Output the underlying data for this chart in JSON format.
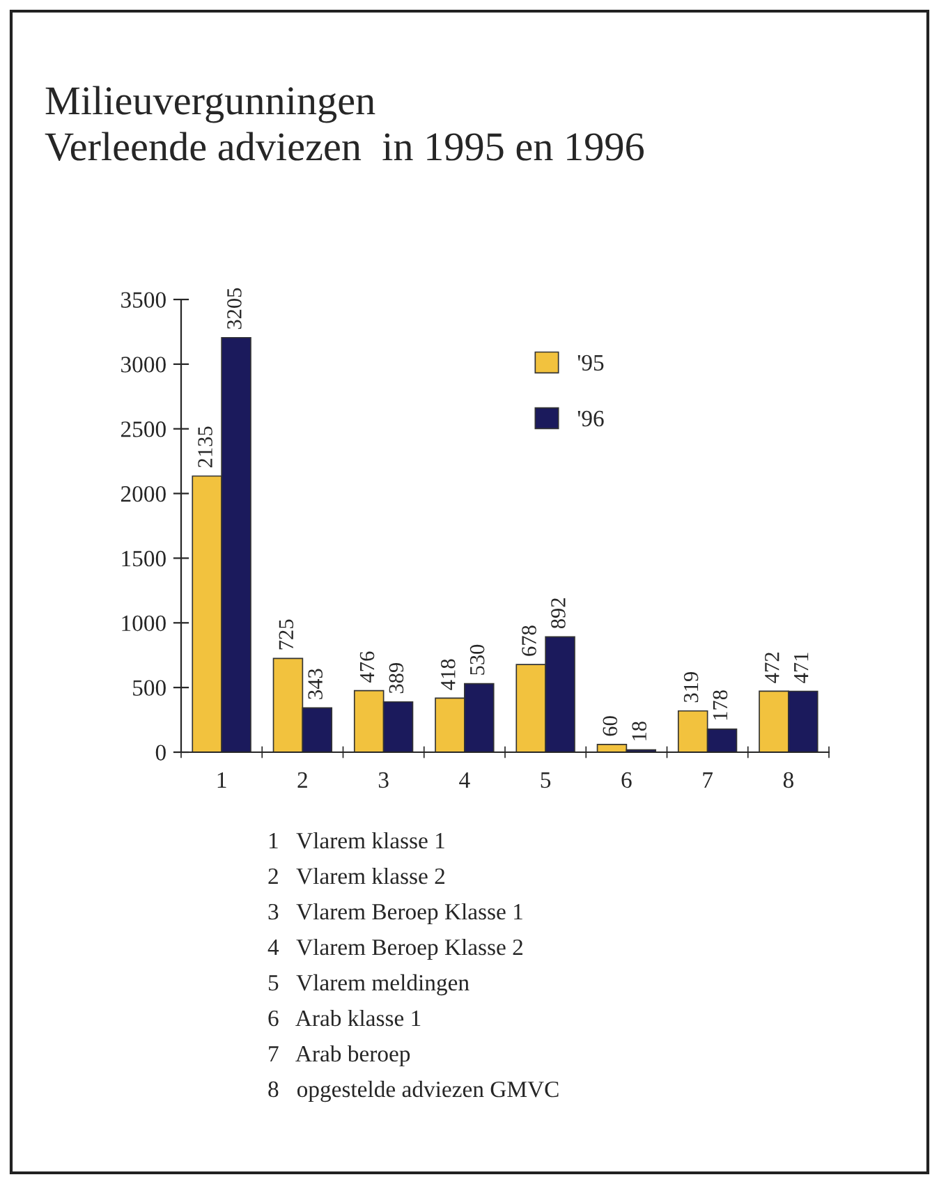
{
  "chart_data": {
    "type": "bar",
    "title": "Milieuvergunningen",
    "subtitle": "Verleende adviezen  in 1995 en 1996",
    "categories": [
      "1",
      "2",
      "3",
      "4",
      "5",
      "6",
      "7",
      "8"
    ],
    "series": [
      {
        "name": "'95",
        "color": "#f2c23e",
        "values": [
          2135,
          725,
          476,
          418,
          678,
          60,
          319,
          472
        ]
      },
      {
        "name": "'96",
        "color": "#1b1a5c",
        "values": [
          3205,
          343,
          389,
          530,
          892,
          18,
          178,
          471
        ]
      }
    ],
    "ylim": [
      0,
      3500
    ],
    "yticks": [
      0,
      500,
      1000,
      1500,
      2000,
      2500,
      3000,
      3500
    ],
    "data_labels": true,
    "legend": "top",
    "grid": false,
    "annotations": [
      "1   Vlarem klasse 1",
      "2   Vlarem klasse 2",
      "3   Vlarem Beroep Klasse 1",
      "4   Vlarem Beroep Klasse 2",
      "5   Vlarem meldingen",
      "6   Arab klasse 1",
      "7   Arab beroep",
      "8   opgestelde adviezen GMVC"
    ]
  }
}
